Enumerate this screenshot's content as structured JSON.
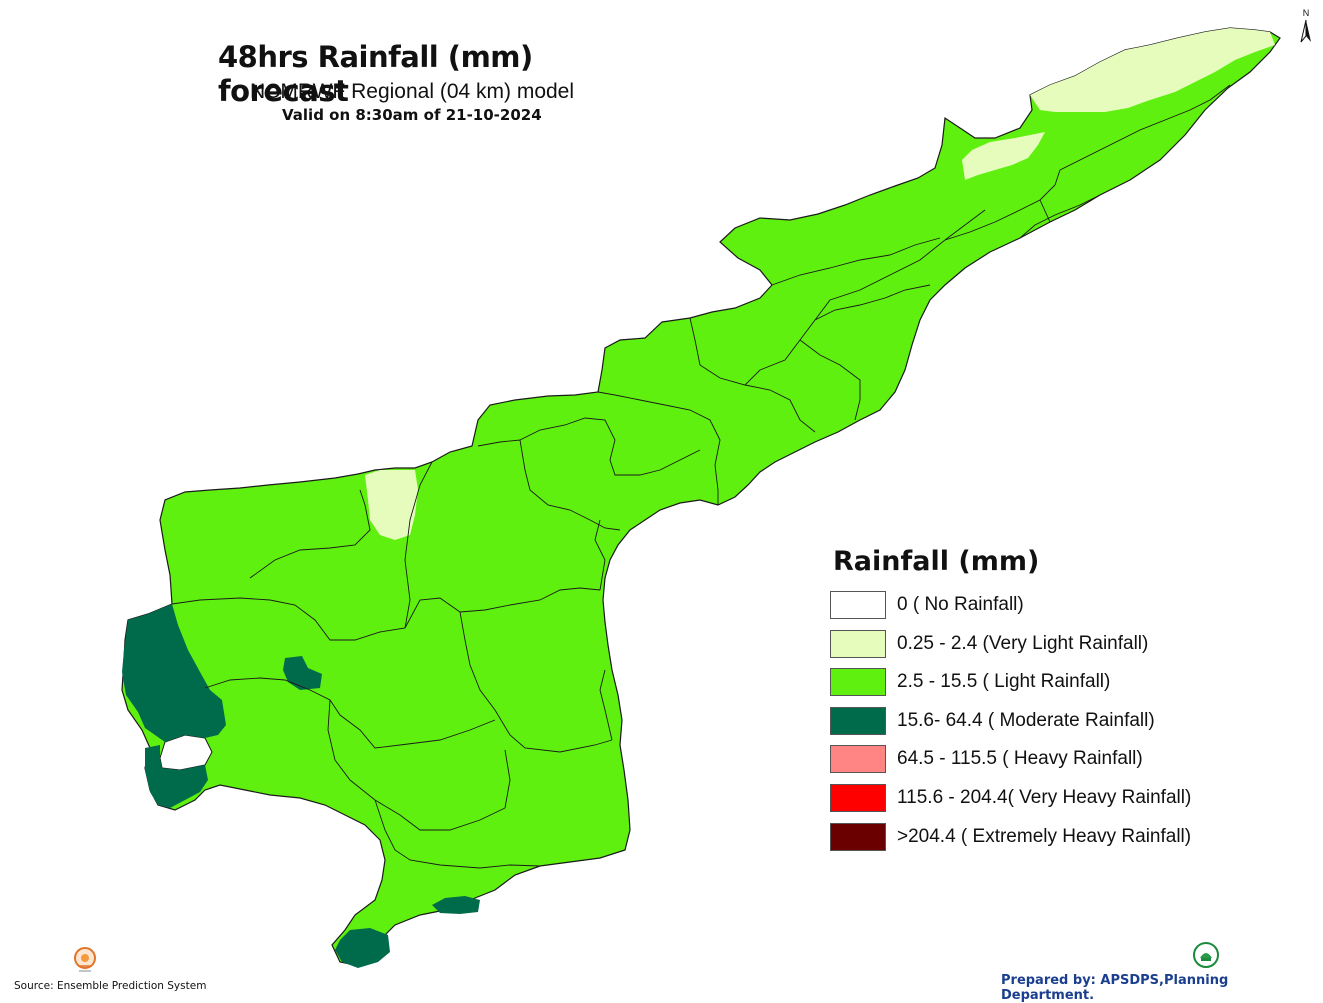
{
  "header": {
    "title": "48hrs Rainfall (mm) forecast",
    "subtitle": "NCMRWF Regional (04 km) model",
    "validity": "Valid on 8:30am of 21-10-2024"
  },
  "north_arrow": {
    "label": "N",
    "icon": "north-arrow-icon"
  },
  "legend": {
    "title": "Rainfall (mm)",
    "items": [
      {
        "label": "0 ( No Rainfall)",
        "color": "#ffffff"
      },
      {
        "label": "0.25 - 2.4 (Very Light Rainfall)",
        "color": "#e5fcbd"
      },
      {
        "label": "2.5 - 15.5 ( Light Rainfall)",
        "color": "#5ff00f"
      },
      {
        "label": "15.6- 64.4 ( Moderate Rainfall)",
        "color": "#006b4a"
      },
      {
        "label": "64.5 - 115.5 ( Heavy Rainfall)",
        "color": "#ff8484"
      },
      {
        "label": "115.6 - 204.4( Very Heavy Rainfall)",
        "color": "#ff0000"
      },
      {
        "label": ">204.4 ( Extremely Heavy Rainfall)",
        "color": "#6b0000"
      }
    ]
  },
  "map": {
    "categories_present": [
      "Very Light Rainfall",
      "Light Rainfall",
      "Moderate Rainfall"
    ],
    "colors": {
      "light": "#5ff00f",
      "very_light": "#e5fcbd",
      "moderate": "#006b4a",
      "boundary": "#1a1a1a"
    }
  },
  "footer": {
    "source": "Source: Ensemble Prediction System",
    "prepared_by": "Prepared by: APSDPS,Planning Department."
  }
}
